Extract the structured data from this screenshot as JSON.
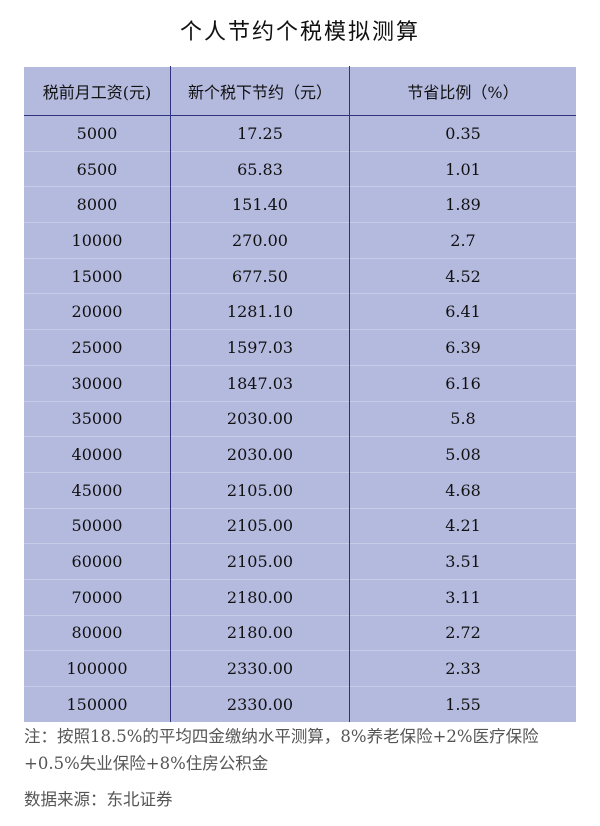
{
  "title": "个人节约个税模拟测算",
  "table": {
    "headers": [
      "税前月工资(元)",
      "新个税下节约（元）",
      "节省比例（%）"
    ],
    "rows": [
      [
        "5000",
        "17.25",
        "0.35"
      ],
      [
        "6500",
        "65.83",
        "1.01"
      ],
      [
        "8000",
        "151.40",
        "1.89"
      ],
      [
        "10000",
        "270.00",
        "2.7"
      ],
      [
        "15000",
        "677.50",
        "4.52"
      ],
      [
        "20000",
        "1281.10",
        "6.41"
      ],
      [
        "25000",
        "1597.03",
        "6.39"
      ],
      [
        "30000",
        "1847.03",
        "6.16"
      ],
      [
        "35000",
        "2030.00",
        "5.8"
      ],
      [
        "40000",
        "2030.00",
        "5.08"
      ],
      [
        "45000",
        "2105.00",
        "4.68"
      ],
      [
        "50000",
        "2105.00",
        "4.21"
      ],
      [
        "60000",
        "2105.00",
        "3.51"
      ],
      [
        "70000",
        "2180.00",
        "3.11"
      ],
      [
        "80000",
        "2180.00",
        "2.72"
      ],
      [
        "100000",
        "2330.00",
        "2.33"
      ],
      [
        "150000",
        "2330.00",
        "1.55"
      ]
    ]
  },
  "note": "注：按照18.5%的平均四金缴纳水平测算，8%养老保险+2%医疗保险+0.5%失业保险+8%住房公积金",
  "source": "数据来源：东北证券",
  "colors": {
    "table_bg": "#b4b9de",
    "grid": "#2e3380",
    "note_text": "#555555"
  }
}
